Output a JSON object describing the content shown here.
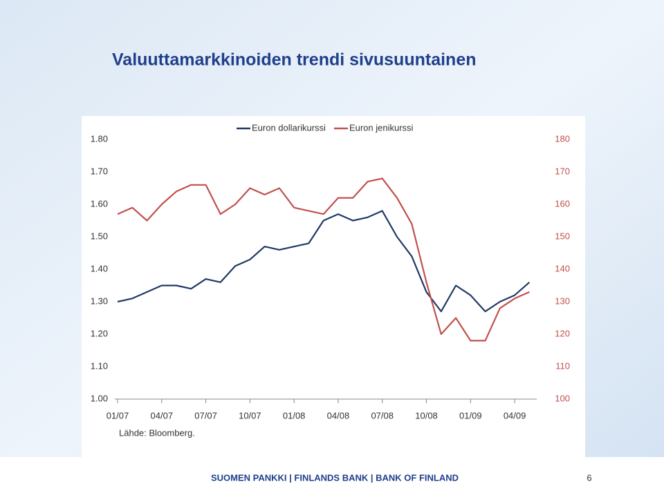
{
  "title": "Valuuttamarkkinoiden trendi sivusuuntainen",
  "chart_data": {
    "type": "line",
    "categories": [
      "01/07",
      null,
      null,
      "04/07",
      null,
      null,
      "07/07",
      null,
      null,
      "10/07",
      null,
      null,
      "01/08",
      null,
      null,
      "04/08",
      null,
      null,
      "07/08",
      null,
      null,
      "10/08",
      null,
      null,
      "01/09",
      null,
      null,
      "04/09",
      null
    ],
    "series": [
      {
        "name": "Euron dollarikurssi",
        "color": "#1f3864",
        "values": [
          1.3,
          1.31,
          1.33,
          1.35,
          1.35,
          1.34,
          1.37,
          1.36,
          1.41,
          1.43,
          1.47,
          1.46,
          1.47,
          1.48,
          1.55,
          1.57,
          1.55,
          1.56,
          1.58,
          1.5,
          1.44,
          1.33,
          1.27,
          1.35,
          1.32,
          1.27,
          1.3,
          1.32,
          1.36
        ]
      },
      {
        "name": "Euron jenikurssi",
        "color": "#c0504d",
        "axis": "y2",
        "values": [
          157,
          159,
          155,
          160,
          164,
          166,
          166,
          157,
          160,
          165,
          163,
          165,
          159,
          158,
          157,
          162,
          162,
          167,
          168,
          162,
          154,
          136,
          120,
          125,
          118,
          118,
          128,
          131,
          133
        ]
      }
    ],
    "ylim": [
      1.0,
      1.8
    ],
    "yticks": [
      {
        "value": 1.0,
        "label": "1.00"
      },
      {
        "value": 1.1,
        "label": "1.10"
      },
      {
        "value": 1.2,
        "label": "1.20"
      },
      {
        "value": 1.3,
        "label": "1.30"
      },
      {
        "value": 1.4,
        "label": "1.40"
      },
      {
        "value": 1.5,
        "label": "1.50"
      },
      {
        "value": 1.6,
        "label": "1.60"
      },
      {
        "value": 1.7,
        "label": "1.70"
      },
      {
        "value": 1.8,
        "label": "1.80"
      }
    ],
    "y2lim": [
      100,
      180
    ],
    "y2ticks": [
      100,
      110,
      120,
      130,
      140,
      150,
      160,
      170,
      180
    ],
    "legend": "top",
    "source": "Lähde: Bloomberg."
  },
  "footer": {
    "text": "SUOMEN PANKKI | FINLANDS BANK | BANK OF FINLAND",
    "page": "6"
  }
}
